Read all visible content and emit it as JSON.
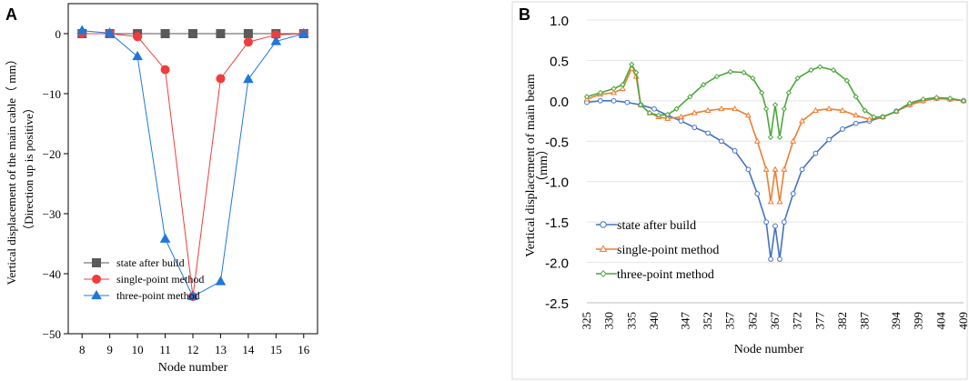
{
  "chart_data": [
    {
      "panel_label": "A",
      "type": "line",
      "xlabel": "Node number",
      "ylabel_line1": "Vertical displacement of the main cable（ mm）",
      "ylabel_line2": "（Direction up is positive）",
      "categories": [
        "8",
        "9",
        "10",
        "11",
        "12",
        "13",
        "14",
        "15",
        "16"
      ],
      "x": [
        8,
        9,
        10,
        11,
        12,
        13,
        14,
        15,
        16
      ],
      "xlim": [
        7.5,
        16.5
      ],
      "ylim": [
        -50,
        5
      ],
      "yticks": [
        "0",
        "−10",
        "−20",
        "−30",
        "−40",
        "−50"
      ],
      "ytick_values": [
        0,
        -10,
        -20,
        -30,
        -40,
        -50
      ],
      "legend_position": "bottom-left",
      "series": [
        {
          "name": "state after build",
          "color": "#5a5a5a",
          "marker": "square",
          "values": [
            0,
            0,
            0,
            0,
            0,
            0,
            0,
            0,
            0
          ]
        },
        {
          "name": "single-point method",
          "color": "#f03c3c",
          "marker": "circle",
          "values": [
            0,
            0,
            -0.5,
            -6,
            -43.8,
            -7.5,
            -1.4,
            -0.2,
            0
          ]
        },
        {
          "name": "three-point method",
          "color": "#1f78d9",
          "marker": "triangle",
          "values": [
            0.5,
            0.1,
            -3.8,
            -34.2,
            -43.8,
            -41.3,
            -7.6,
            -1.3,
            0
          ]
        }
      ]
    },
    {
      "panel_label": "B",
      "type": "line",
      "xlabel": "Node number",
      "ylabel_line1": "Vertical displacement of main beam",
      "ylabel_line2": "（mm）",
      "categories": [
        "325",
        "330",
        "335",
        "340",
        "347",
        "352",
        "357",
        "362",
        "367",
        "372",
        "377",
        "382",
        "387",
        "394",
        "399",
        "404",
        "409"
      ],
      "xlim": [
        325,
        409
      ],
      "ylim": [
        -2.5,
        1.0
      ],
      "yticks": [
        "1.0",
        "0.5",
        "0.0",
        "-0.5",
        "-1.0",
        "-1.5",
        "-2.0",
        "-2.5"
      ],
      "ytick_values": [
        1.0,
        0.5,
        0.0,
        -0.5,
        -1.0,
        -1.5,
        -2.0,
        -2.5
      ],
      "legend_position": "bottom-left",
      "series": [
        {
          "name": "state after build",
          "color": "#4472c4",
          "marker": "circle",
          "points": [
            [
              325,
              -0.02
            ],
            [
              328,
              0.0
            ],
            [
              331,
              0.0
            ],
            [
              334,
              -0.02
            ],
            [
              337,
              -0.05
            ],
            [
              340,
              -0.1
            ],
            [
              343,
              -0.18
            ],
            [
              346,
              -0.25
            ],
            [
              349,
              -0.33
            ],
            [
              352,
              -0.4
            ],
            [
              355,
              -0.5
            ],
            [
              358,
              -0.62
            ],
            [
              361,
              -0.85
            ],
            [
              363,
              -1.15
            ],
            [
              365,
              -1.5
            ],
            [
              366,
              -1.96
            ],
            [
              367,
              -1.55
            ],
            [
              368,
              -1.96
            ],
            [
              369,
              -1.5
            ],
            [
              371,
              -1.15
            ],
            [
              373,
              -0.85
            ],
            [
              376,
              -0.65
            ],
            [
              379,
              -0.48
            ],
            [
              382,
              -0.35
            ],
            [
              385,
              -0.28
            ],
            [
              388,
              -0.25
            ],
            [
              391,
              -0.2
            ],
            [
              394,
              -0.13
            ],
            [
              397,
              -0.05
            ],
            [
              400,
              0.0
            ],
            [
              403,
              0.03
            ],
            [
              406,
              0.02
            ],
            [
              409,
              0.0
            ]
          ]
        },
        {
          "name": "single-point method",
          "color": "#ed7d31",
          "marker": "triangle",
          "points": [
            [
              325,
              0.02
            ],
            [
              328,
              0.08
            ],
            [
              331,
              0.1
            ],
            [
              333,
              0.15
            ],
            [
              335,
              0.4
            ],
            [
              336,
              0.3
            ],
            [
              337,
              -0.05
            ],
            [
              339,
              -0.15
            ],
            [
              341,
              -0.2
            ],
            [
              343,
              -0.22
            ],
            [
              346,
              -0.2
            ],
            [
              349,
              -0.15
            ],
            [
              352,
              -0.12
            ],
            [
              355,
              -0.1
            ],
            [
              358,
              -0.1
            ],
            [
              361,
              -0.18
            ],
            [
              363,
              -0.5
            ],
            [
              365,
              -0.85
            ],
            [
              366,
              -1.25
            ],
            [
              367,
              -0.85
            ],
            [
              368,
              -1.25
            ],
            [
              369,
              -0.85
            ],
            [
              371,
              -0.5
            ],
            [
              373,
              -0.25
            ],
            [
              376,
              -0.12
            ],
            [
              379,
              -0.1
            ],
            [
              382,
              -0.12
            ],
            [
              385,
              -0.18
            ],
            [
              388,
              -0.23
            ],
            [
              391,
              -0.2
            ],
            [
              394,
              -0.13
            ],
            [
              397,
              -0.05
            ],
            [
              400,
              0.0
            ],
            [
              403,
              0.03
            ],
            [
              406,
              0.02
            ],
            [
              409,
              0.0
            ]
          ]
        },
        {
          "name": "three-point method",
          "color": "#4ca63c",
          "marker": "diamond",
          "points": [
            [
              325,
              0.05
            ],
            [
              328,
              0.1
            ],
            [
              331,
              0.15
            ],
            [
              333,
              0.2
            ],
            [
              335,
              0.45
            ],
            [
              336,
              0.35
            ],
            [
              337,
              -0.05
            ],
            [
              339,
              -0.15
            ],
            [
              341,
              -0.18
            ],
            [
              343,
              -0.17
            ],
            [
              345,
              -0.1
            ],
            [
              348,
              0.05
            ],
            [
              351,
              0.2
            ],
            [
              354,
              0.3
            ],
            [
              357,
              0.36
            ],
            [
              360,
              0.35
            ],
            [
              362,
              0.28
            ],
            [
              364,
              0.1
            ],
            [
              365,
              -0.1
            ],
            [
              366,
              -0.45
            ],
            [
              367,
              -0.05
            ],
            [
              368,
              -0.45
            ],
            [
              369,
              -0.1
            ],
            [
              370,
              0.1
            ],
            [
              372,
              0.28
            ],
            [
              375,
              0.38
            ],
            [
              377,
              0.42
            ],
            [
              380,
              0.38
            ],
            [
              383,
              0.25
            ],
            [
              385,
              0.05
            ],
            [
              387,
              -0.12
            ],
            [
              389,
              -0.2
            ],
            [
              391,
              -0.2
            ],
            [
              394,
              -0.13
            ],
            [
              397,
              -0.03
            ],
            [
              400,
              0.02
            ],
            [
              403,
              0.04
            ],
            [
              406,
              0.03
            ],
            [
              409,
              0.0
            ]
          ]
        }
      ]
    }
  ]
}
